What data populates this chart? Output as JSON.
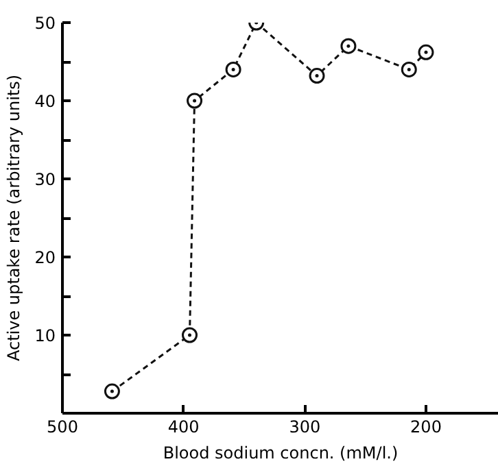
{
  "chart_data": {
    "type": "line",
    "xlabel": "Blood sodium concn. (mM/l.)",
    "ylabel": "Active uptake rate (arbitrary units)",
    "x": [
      459,
      395,
      391,
      359,
      340,
      290,
      264,
      214,
      200
    ],
    "series": [
      {
        "color": "#111111",
        "values": [
          2.8,
          10,
          40,
          44,
          50,
          43.2,
          47,
          44,
          46.2
        ]
      }
    ],
    "xlim": [
      500,
      140
    ],
    "xticks": [
      500,
      400,
      300,
      200
    ],
    "ylim": [
      0,
      50
    ],
    "yticks": [
      {
        "value": 5,
        "label": null
      },
      10,
      {
        "value": 15,
        "label": null
      },
      20,
      {
        "value": 25,
        "label": null
      },
      30,
      {
        "value": 35,
        "label": null
      },
      40,
      {
        "value": 45,
        "label": null
      },
      50
    ],
    "marker": "circle",
    "line_style": "dashed",
    "grid": false
  }
}
